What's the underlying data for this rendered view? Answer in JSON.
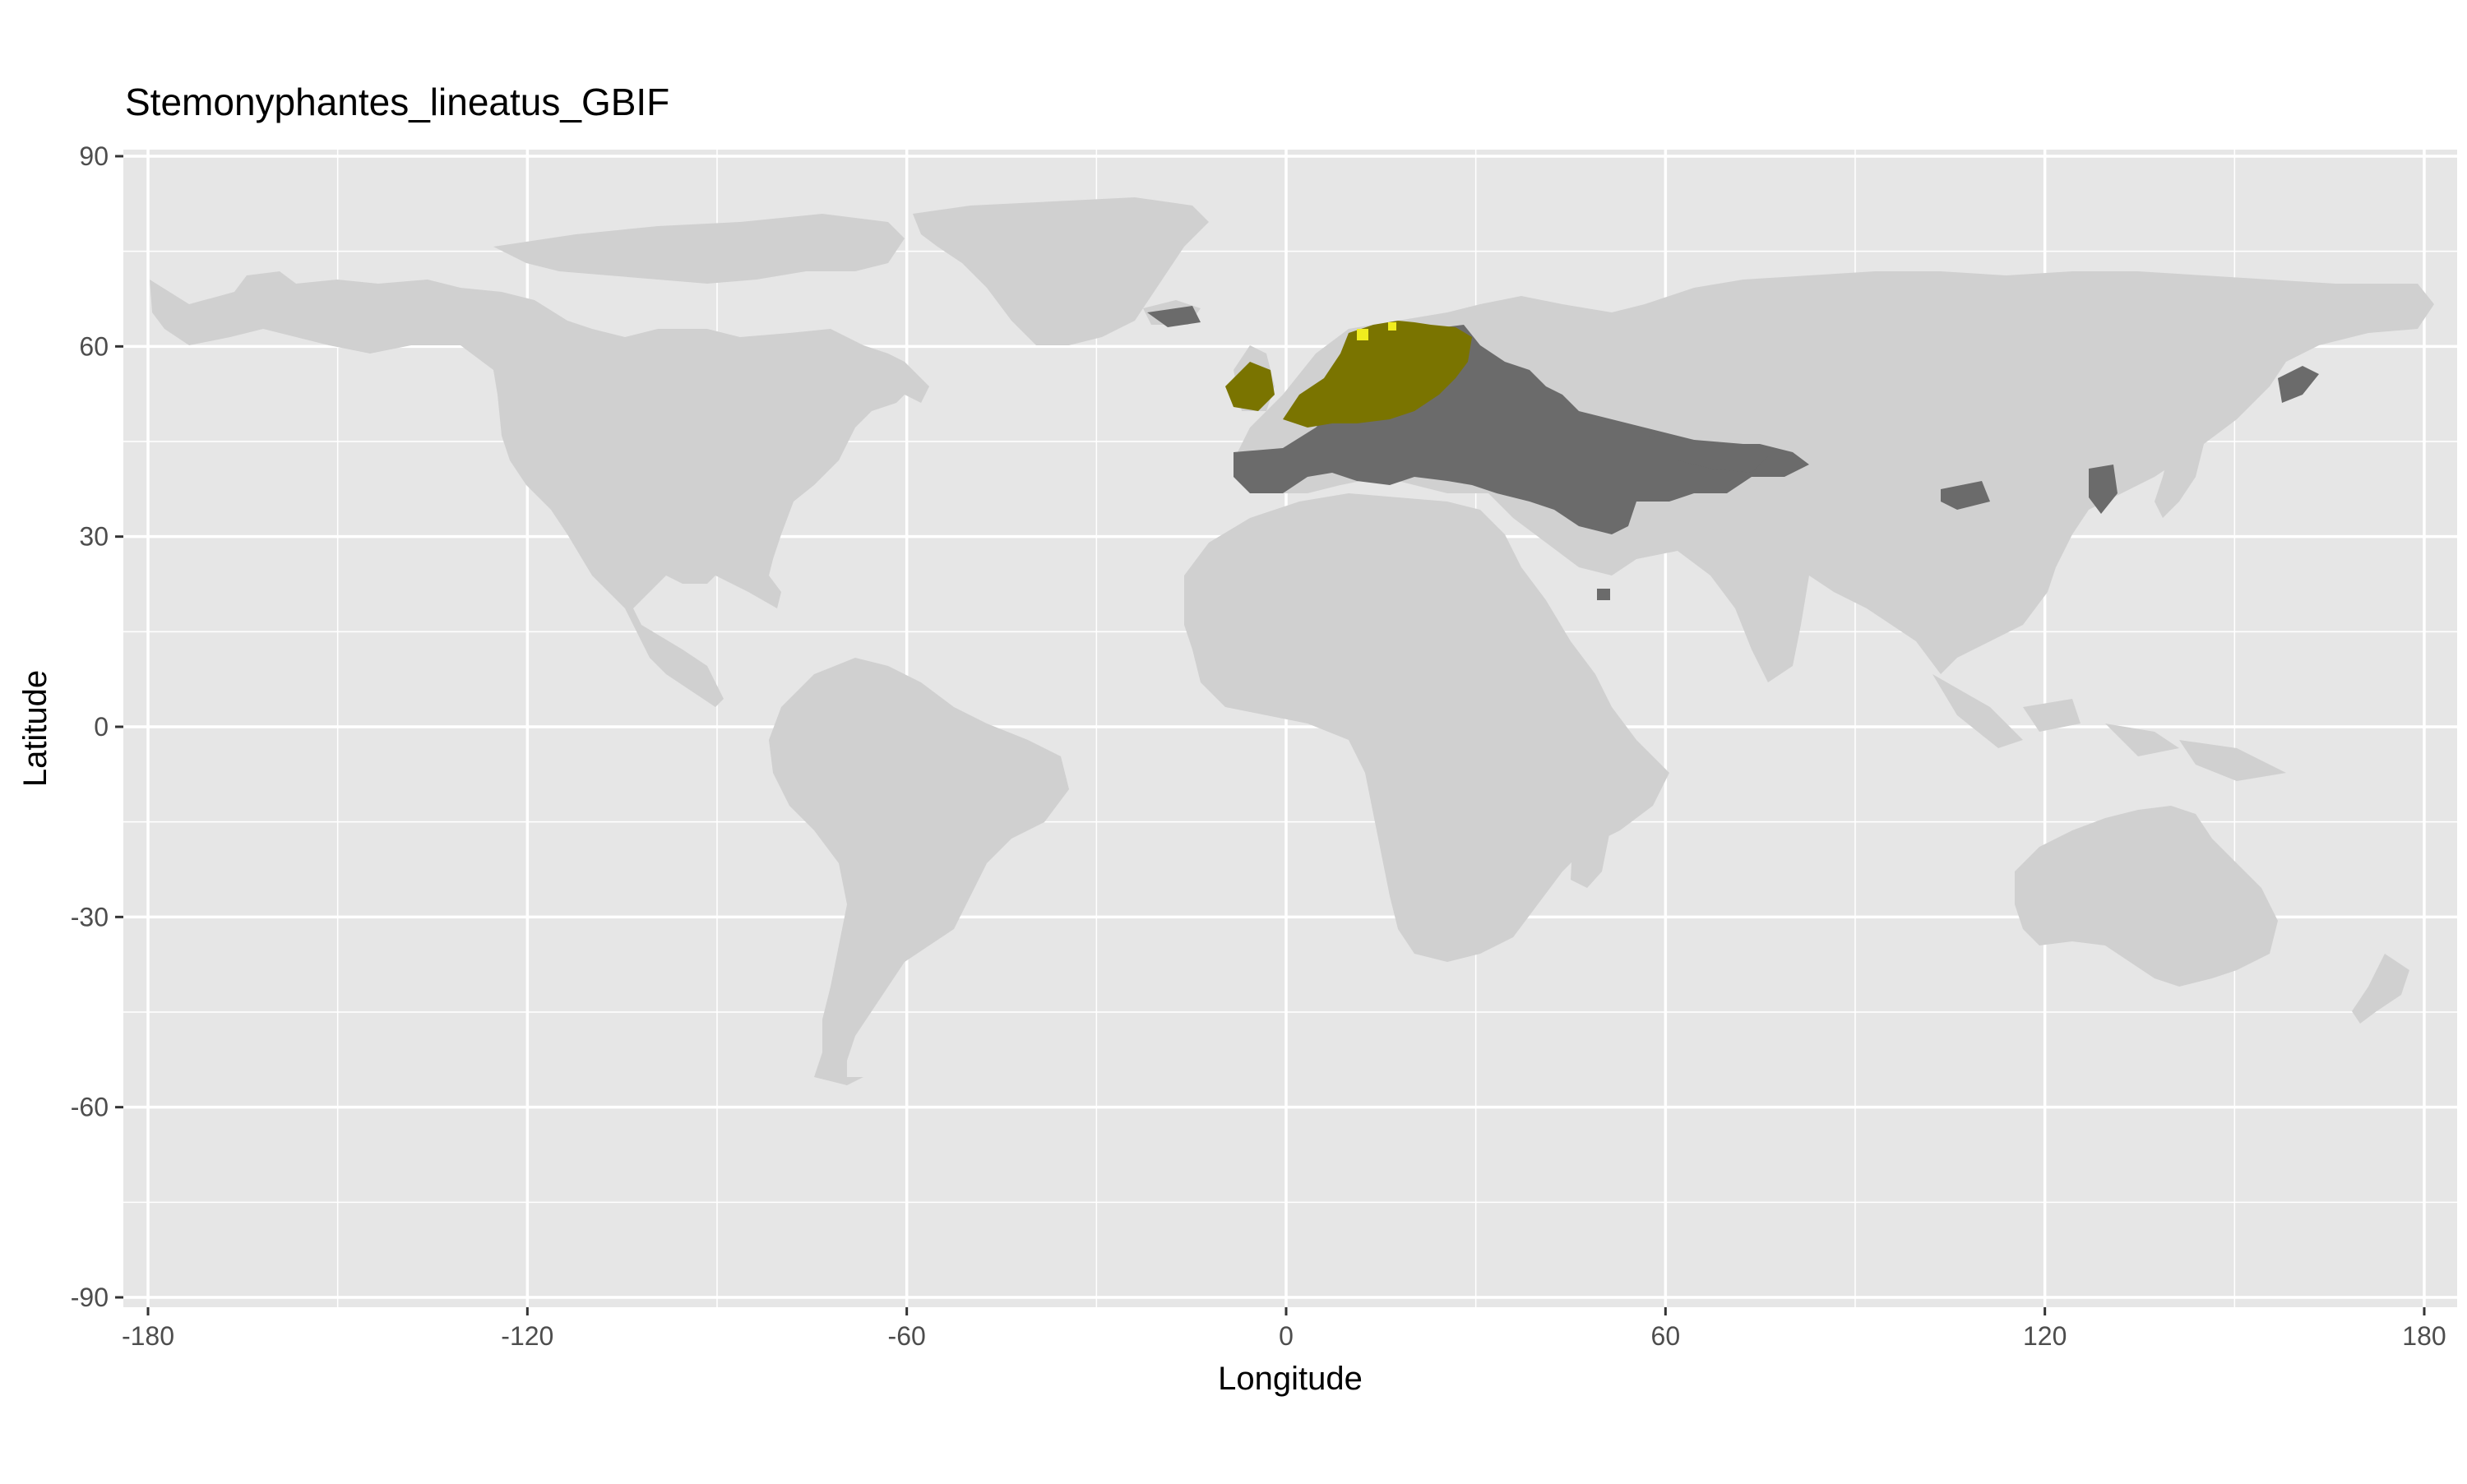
{
  "map": {
    "title": "Stemonyphantes_lineatus_GBIF",
    "xlabel": "Longitude",
    "ylabel": "Latitude",
    "xlim": [
      -180,
      180
    ],
    "ylim": [
      -90,
      90
    ],
    "x_ticks": [
      -180,
      -120,
      -60,
      0,
      60,
      120,
      180
    ],
    "x_tick_labels": [
      "-180",
      "-120",
      "-60",
      "0",
      "60",
      "120",
      "180"
    ],
    "y_ticks": [
      90,
      60,
      30,
      0,
      -30,
      -60,
      -90
    ],
    "y_tick_labels": [
      "90",
      "60",
      "30",
      "0",
      "-30",
      "-60",
      "-90"
    ],
    "grid": true,
    "colors": {
      "panel": "#e6e6e6",
      "grid": "#ffffff",
      "land": "#d0d0d0",
      "wider_range": "#6b6b6b",
      "core_range": "#7a7400",
      "hotspot": "#f0ec1e"
    }
  }
}
